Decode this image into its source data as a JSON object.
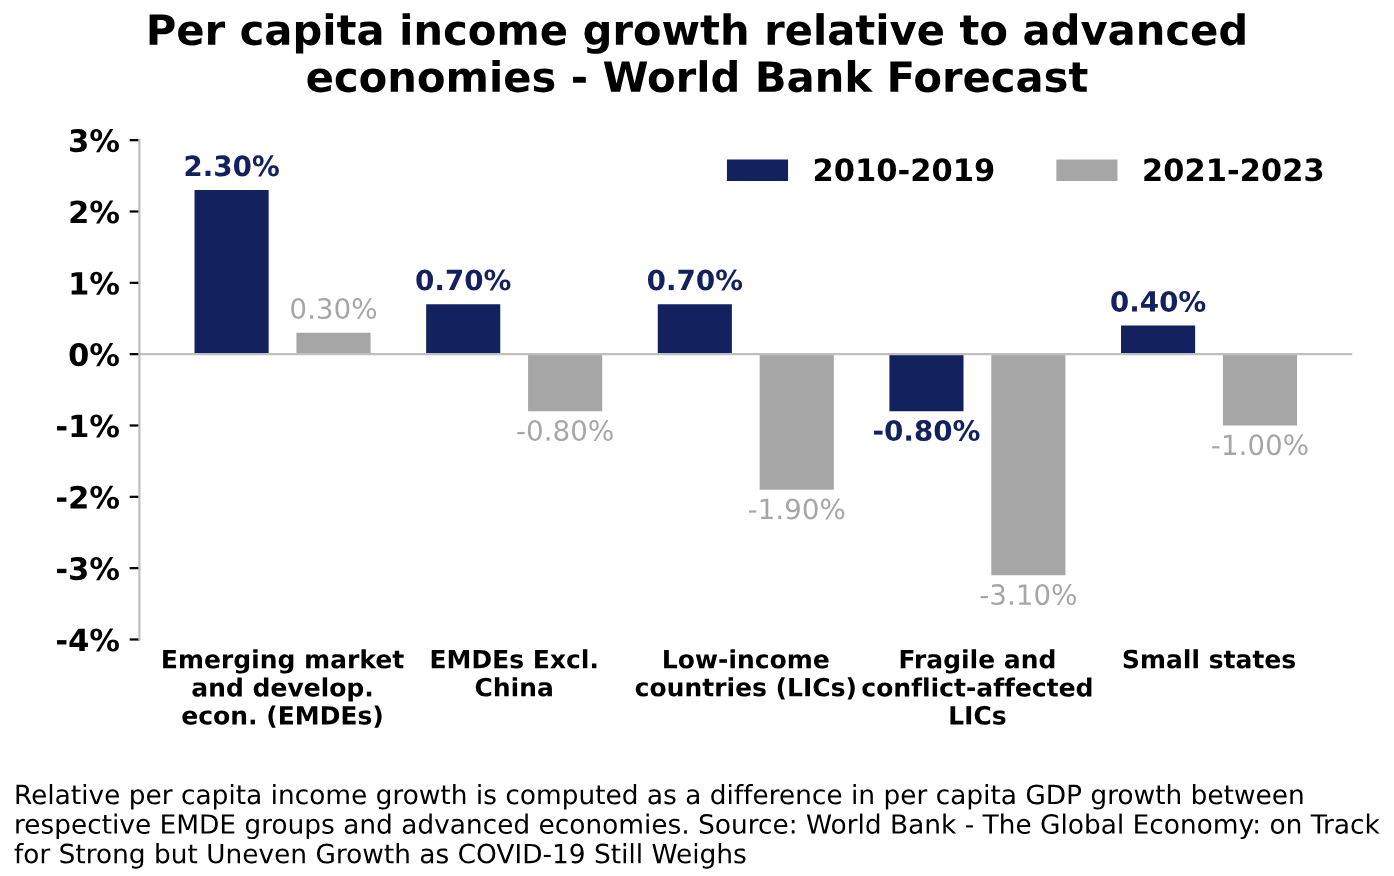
{
  "chart_data": {
    "type": "bar",
    "title": "Per capita income growth relative to advanced\neconomies - World Bank Forecast",
    "categories": [
      "Emerging market\nand develop.\necon. (EMDEs)",
      "EMDEs Excl.\nChina",
      "Low-income\ncountries (LICs)",
      "Fragile and\nconflict-affected\nLICs",
      "Small states"
    ],
    "series": [
      {
        "name": "2010-2019",
        "color": "#14215f",
        "values": [
          2.3,
          0.7,
          0.7,
          -0.8,
          0.4
        ],
        "value_labels": [
          "2.30%",
          "0.70%",
          "0.70%",
          "-0.80%",
          "0.40%"
        ]
      },
      {
        "name": "2021-2023",
        "color": "#a6a6a6",
        "values": [
          0.3,
          -0.8,
          -1.9,
          -3.1,
          -1.0
        ],
        "value_labels": [
          "0.30%",
          "-0.80%",
          "-1.90%",
          "-3.10%",
          "-1.00%"
        ]
      }
    ],
    "ylim": [
      -4,
      3
    ],
    "yticks": [
      {
        "value": -4,
        "label": "-4%"
      },
      {
        "value": -3,
        "label": "-3%"
      },
      {
        "value": -2,
        "label": "-2%"
      },
      {
        "value": -1,
        "label": "-1%"
      },
      {
        "value": 0,
        "label": "0%"
      },
      {
        "value": 1,
        "label": "1%"
      },
      {
        "value": 2,
        "label": "2%"
      },
      {
        "value": 3,
        "label": "3%"
      }
    ],
    "ref_lines": [
      {
        "axis": "y",
        "value": 0,
        "color": "#bfbfbf"
      }
    ],
    "grid": false,
    "legend": "top right",
    "annotations": [
      "Relative per capita income growth is computed as a difference in per capita GDP growth between respective EMDE groups and advanced economies. Source: World Bank - The Global Economy: on Track for Strong but Uneven Growth as COVID-19 Still Weighs"
    ]
  }
}
